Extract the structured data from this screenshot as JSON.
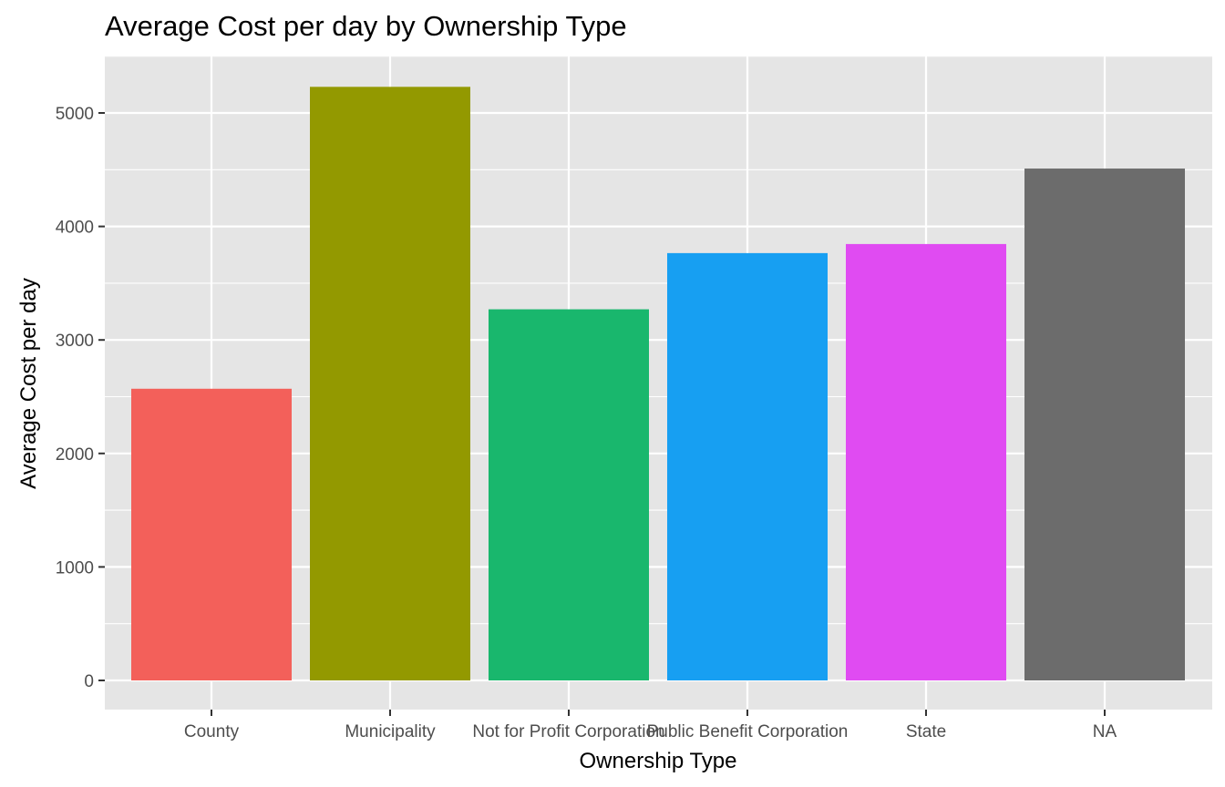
{
  "chart_data": {
    "type": "bar",
    "title": "Average Cost per day by Ownership Type",
    "xlabel": "Ownership Type",
    "ylabel": "Average Cost per day",
    "categories": [
      "County",
      "Municipality",
      "Not for Profit Corporation",
      "Public Benefit Corporation",
      "State",
      "NA"
    ],
    "values": [
      2570,
      5230,
      3270,
      3765,
      3845,
      4510
    ],
    "colors": [
      "#F8766D",
      "#B79F00",
      "#00BA38",
      "#00BFC4",
      "#619CFF",
      "#F564E3"
    ],
    "bar_colors": [
      "#F3605A",
      "#939900",
      "#19B76D",
      "#179FF2",
      "#E04BF2",
      "#6C6C6C"
    ],
    "ylim": [
      0,
      5500
    ],
    "y_ticks": [
      0,
      1000,
      2000,
      3000,
      4000,
      5000
    ],
    "grid": true,
    "legend": "none",
    "panel_background": "#E5E5E5",
    "gridline_color": "#FFFFFF"
  }
}
